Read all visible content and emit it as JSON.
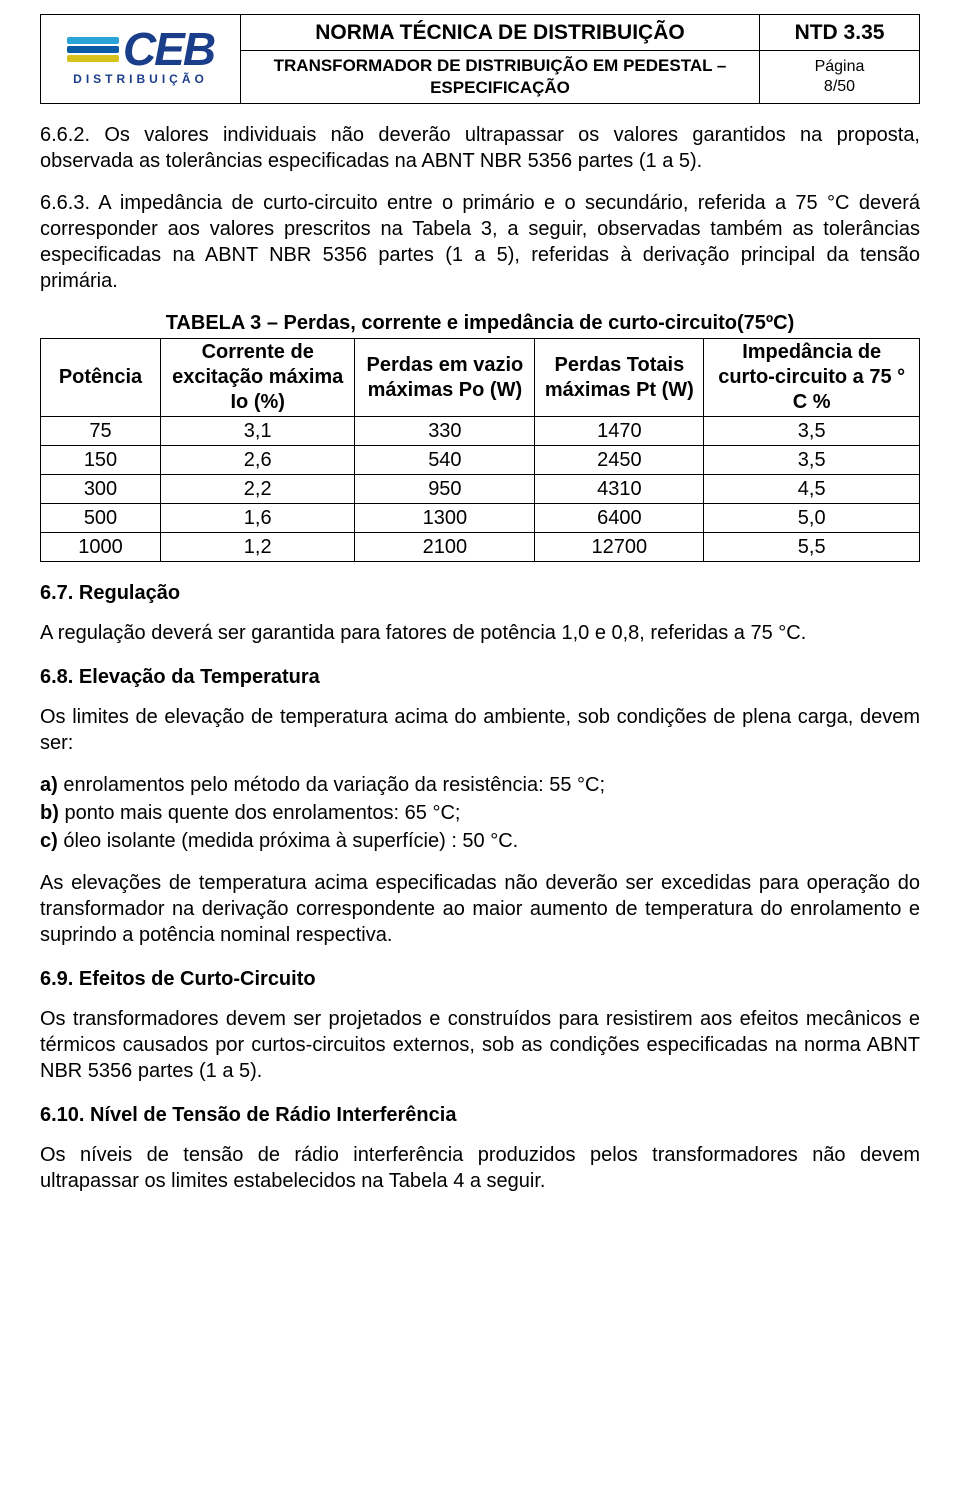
{
  "header": {
    "logo_text": "CEB",
    "logo_sub": "DISTRIBUIÇÃO",
    "bar_colors": [
      "#2aa3d9",
      "#0a5aa6",
      "#d6c21a"
    ],
    "title": "NORMA TÉCNICA DE DISTRIBUIÇÃO",
    "code": "NTD 3.35",
    "subtitle": "TRANSFORMADOR DE DISTRIBUIÇÃO EM PEDESTAL – ESPECIFICAÇÃO",
    "page_label": "Página",
    "page_value": "8/50"
  },
  "body": {
    "p1": "6.6.2. Os valores individuais não deverão ultrapassar os valores garantidos na proposta, observada as tolerâncias especificadas na ABNT NBR 5356 partes (1 a 5).",
    "p2": "6.6.3. A impedância de curto-circuito entre o primário e o secundário, referida a 75 °C deverá corresponder aos valores prescritos na Tabela 3, a seguir, observadas também as tolerâncias especificadas na ABNT NBR 5356 partes (1 a 5), referidas à derivação principal da tensão primária."
  },
  "table3": {
    "caption": "TABELA 3 – Perdas, corrente e impedância de curto-circuito(75ºC)",
    "headers": {
      "potencia": "Potência",
      "corrente": "Corrente de excitação máxima Io (%)",
      "perdas_vazio": "Perdas em vazio máximas Po (W)",
      "perdas_totais": "Perdas Totais máximas Pt (W)",
      "impedancia": "Impedância de curto-circuito a 75 ° C %"
    },
    "rows": [
      {
        "p": "75",
        "c": "3,1",
        "pv": "330",
        "pt": "1470",
        "z": "3,5"
      },
      {
        "p": "150",
        "c": "2,6",
        "pv": "540",
        "pt": "2450",
        "z": "3,5"
      },
      {
        "p": "300",
        "c": "2,2",
        "pv": "950",
        "pt": "4310",
        "z": "4,5"
      },
      {
        "p": "500",
        "c": "1,6",
        "pv": "1300",
        "pt": "6400",
        "z": "5,0"
      },
      {
        "p": "1000",
        "c": "1,2",
        "pv": "2100",
        "pt": "12700",
        "z": "5,5"
      }
    ]
  },
  "sec67": {
    "head": "6.7. Regulação",
    "p": "A regulação deverá ser garantida para fatores de potência 1,0 e 0,8, referidas a 75 °C."
  },
  "sec68": {
    "head": "6.8. Elevação da Temperatura",
    "p1": "Os limites de elevação de temperatura acima do ambiente, sob condições de plena carga, devem ser:",
    "a_label": "a)",
    "a_text": " enrolamentos pelo método da variação da resistência: 55 °C;",
    "b_label": "b)",
    "b_text": " ponto mais quente dos enrolamentos: 65 °C;",
    "c_label": "c)",
    "c_text": " óleo isolante (medida próxima à superfície) : 50 °C.",
    "p2": "As elevações de temperatura acima especificadas não deverão ser excedidas para operação do transformador na derivação correspondente ao maior aumento de temperatura do enrolamento e suprindo a potência nominal respectiva."
  },
  "sec69": {
    "head": "6.9. Efeitos de Curto-Circuito",
    "p": "Os transformadores devem ser projetados e construídos para resistirem aos efeitos mecânicos e térmicos causados por curtos-circuitos externos, sob as condições especificadas na norma ABNT NBR 5356 partes (1 a 5)."
  },
  "sec610": {
    "head": "6.10. Nível de Tensão de Rádio Interferência",
    "p": "Os níveis de tensão de rádio interferência produzidos pelos transformadores não devem ultrapassar os limites estabelecidos na Tabela 4 a seguir."
  }
}
